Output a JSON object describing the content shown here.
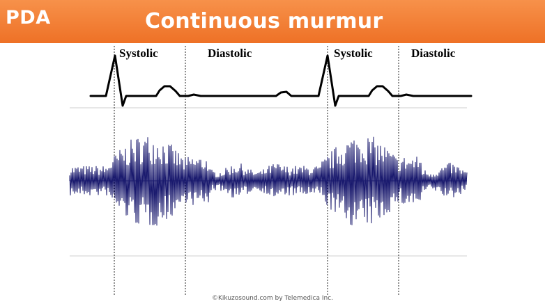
{
  "header": {
    "badge": "PDA",
    "title": "Continuous murmur",
    "bar_color": "#ee7126"
  },
  "phases": {
    "systolic_1": "Systolic",
    "diastolic_1": "Diastolic",
    "systolic_2": "Systolic",
    "diastolic_2": "Diastolic"
  },
  "waveforms": {
    "ecg": {
      "type": "ECG trace",
      "cycles": 2,
      "color": "#000000"
    },
    "murmur": {
      "type": "phonocardiogram",
      "description_visible": false,
      "color": "#1a1a6e",
      "cycles": 2
    }
  },
  "footer": {
    "credit": "©Kikuzosound.com by Telemedica Inc."
  }
}
